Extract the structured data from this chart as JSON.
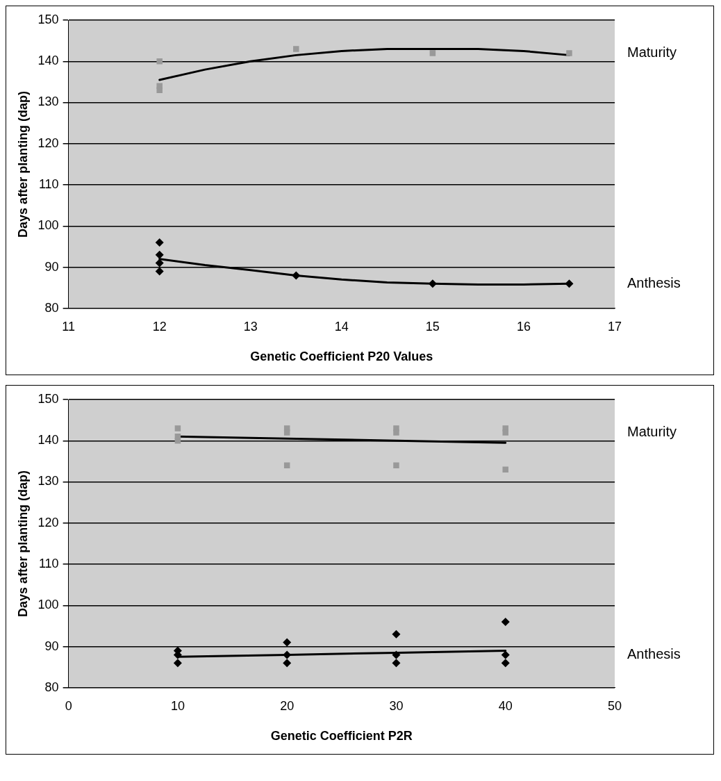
{
  "chart_data": [
    {
      "type": "scatter",
      "xlabel": "Genetic Coefficient P20 Values",
      "ylabel": "Days after planting (dap)",
      "xlim": [
        11,
        17
      ],
      "xticks": [
        11,
        12,
        13,
        14,
        15,
        16,
        17
      ],
      "ylim": [
        80,
        150
      ],
      "yticks": [
        80,
        90,
        100,
        110,
        120,
        130,
        140,
        150
      ],
      "grid": "y",
      "series": [
        {
          "name": "Maturity",
          "type": "scatter",
          "marker": "square",
          "color": "#999999",
          "x": [
            12,
            12,
            12,
            13.5,
            15,
            16.5
          ],
          "values": [
            140,
            134,
            133,
            143,
            142,
            142
          ]
        },
        {
          "name": "Anthesis",
          "type": "scatter",
          "marker": "diamond",
          "color": "#000000",
          "x": [
            12,
            12,
            12,
            12,
            13.5,
            15,
            16.5
          ],
          "values": [
            96,
            93,
            91,
            89,
            88,
            86,
            86
          ]
        },
        {
          "type": "line",
          "marker": "none",
          "color": "#000000",
          "x": [
            12,
            12.5,
            13,
            13.5,
            14,
            14.5,
            15,
            15.5,
            16,
            16.5
          ],
          "values": [
            135.5,
            138,
            140,
            141.5,
            142.5,
            143,
            143,
            143,
            142.5,
            141.5
          ]
        },
        {
          "type": "line",
          "marker": "none",
          "color": "#000000",
          "x": [
            12,
            12.5,
            13,
            13.5,
            14,
            14.5,
            15,
            15.5,
            16,
            16.5
          ],
          "values": [
            92,
            90.5,
            89.3,
            88,
            87,
            86.3,
            86,
            85.8,
            85.8,
            86
          ]
        }
      ]
    },
    {
      "type": "scatter",
      "xlabel": "Genetic Coefficient P2R",
      "ylabel": "Days after planting (dap)",
      "xlim": [
        0,
        50
      ],
      "xticks": [
        0,
        10,
        20,
        30,
        40,
        50
      ],
      "ylim": [
        80,
        150
      ],
      "yticks": [
        80,
        90,
        100,
        110,
        120,
        130,
        140,
        150
      ],
      "grid": "y",
      "series": [
        {
          "name": "Maturity",
          "type": "scatter",
          "marker": "square",
          "color": "#999999",
          "x": [
            10,
            10,
            10,
            20,
            20,
            20,
            30,
            30,
            30,
            40,
            40,
            40
          ],
          "values": [
            143,
            141,
            140,
            143,
            134,
            142,
            143,
            134,
            142,
            143,
            133,
            142
          ]
        },
        {
          "name": "Anthesis",
          "type": "scatter",
          "marker": "diamond",
          "color": "#000000",
          "x": [
            10,
            10,
            10,
            20,
            20,
            20,
            30,
            30,
            30,
            40,
            40,
            40
          ],
          "values": [
            89,
            86,
            88,
            91,
            86,
            88,
            93,
            86,
            88,
            96,
            86,
            88
          ]
        },
        {
          "type": "line",
          "marker": "none",
          "color": "#000000",
          "x": [
            10,
            20,
            30,
            40
          ],
          "values": [
            141,
            140.5,
            140,
            139.5
          ]
        },
        {
          "type": "line",
          "marker": "none",
          "color": "#000000",
          "x": [
            10,
            20,
            30,
            40
          ],
          "values": [
            87.5,
            88,
            88.5,
            89
          ]
        }
      ]
    }
  ]
}
